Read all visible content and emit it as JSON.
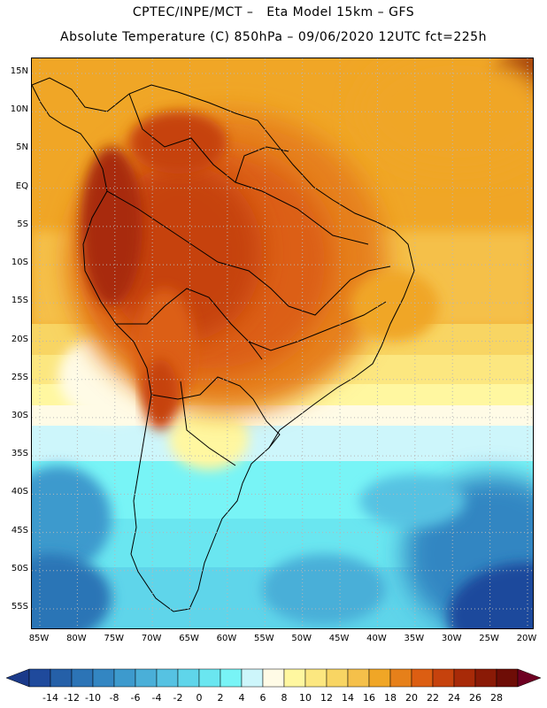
{
  "header": {
    "line1": "CPTEC/INPE/MCT –   Eta Model 15km – GFS",
    "line2": "Absolute Temperature (C) 850hPa – 09/06/2020 12UTC fct=225h"
  },
  "map": {
    "lat_labels": [
      "15N",
      "10N",
      "5N",
      "EQ",
      "5S",
      "10S",
      "15S",
      "20S",
      "25S",
      "30S",
      "35S",
      "40S",
      "45S",
      "50S",
      "55S"
    ],
    "lon_labels": [
      "85W",
      "80W",
      "75W",
      "70W",
      "65W",
      "60W",
      "55W",
      "50W",
      "45W",
      "40W",
      "35W",
      "30W",
      "25W",
      "20W"
    ],
    "lat_values": [
      15,
      10,
      5,
      0,
      -5,
      -10,
      -15,
      -20,
      -25,
      -30,
      -35,
      -40,
      -45,
      -50,
      -55
    ],
    "lon_values": [
      -85,
      -80,
      -75,
      -70,
      -65,
      -60,
      -55,
      -50,
      -45,
      -40,
      -35,
      -30,
      -25,
      -20
    ],
    "grid": "dotted",
    "variable": "Absolute Temperature (C)",
    "level": "850hPa"
  },
  "colorbar": {
    "labels": [
      "-14",
      "-12",
      "-10",
      "-8",
      "-6",
      "-4",
      "-2",
      "0",
      "2",
      "4",
      "6",
      "8",
      "10",
      "12",
      "14",
      "16",
      "18",
      "20",
      "22",
      "24",
      "26",
      "28"
    ],
    "colors": [
      "#1f4a9c",
      "#2560a8",
      "#2c74b6",
      "#3386c2",
      "#3d9acd",
      "#4aafd8",
      "#56c2e2",
      "#5fd5ea",
      "#6ae6f0",
      "#78f4f6",
      "#cdf6fb",
      "#fffbe6",
      "#fff7a0",
      "#fce780",
      "#f8d563",
      "#f5c04a",
      "#f0a626",
      "#e6801a",
      "#dc5e12",
      "#c6420d",
      "#a82a08",
      "#8a1a06",
      "#6e0d06"
    ],
    "under_color": "#1b3a8a",
    "over_color": "#6e0022"
  }
}
